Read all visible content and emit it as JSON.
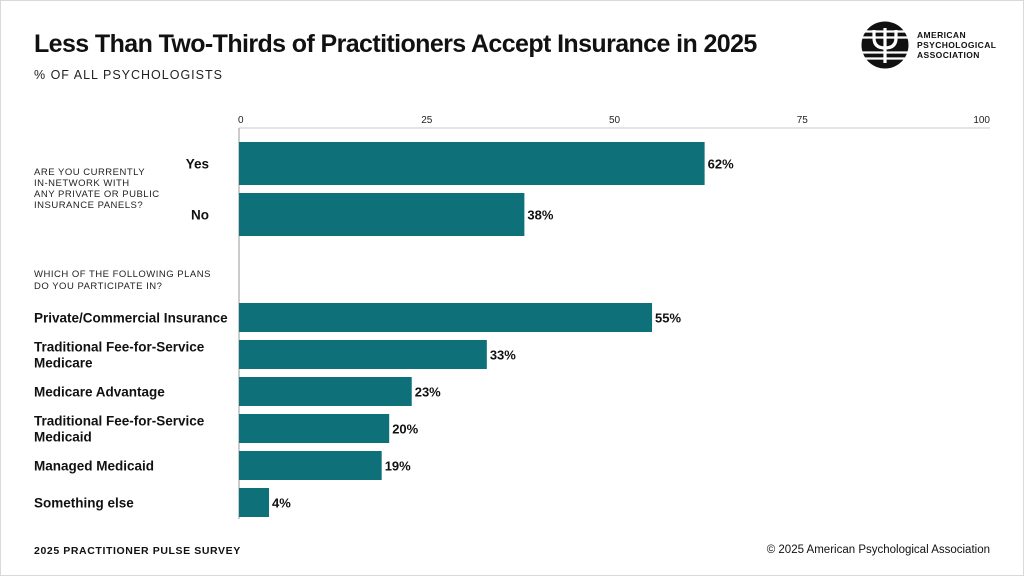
{
  "title": "Less Than Two-Thirds of Practitioners Accept Insurance in 2025",
  "subtitle": "% OF ALL PSYCHOLOGISTS",
  "logo": {
    "lines": [
      "AMERICAN",
      "PSYCHOLOGICAL",
      "ASSOCIATION"
    ],
    "icon": "psi-logo-icon"
  },
  "footer": {
    "left": "2025 PRACTITIONER PULSE SURVEY",
    "right": "© 2025 American Psychological Association"
  },
  "colors": {
    "bar": "#0e717a",
    "axis": "#9a9a9a",
    "text": "#111111"
  },
  "chart_data": {
    "type": "bar",
    "orientation": "horizontal",
    "xlim": [
      0,
      100
    ],
    "xticks": [
      "0",
      "25",
      "50",
      "75",
      "100"
    ],
    "grid": false,
    "groups": [
      {
        "question_lines": [
          "ARE YOU CURRENTLY",
          "IN-NETWORK WITH",
          "ANY PRIVATE OR PUBLIC",
          "INSURANCE PANELS?"
        ],
        "items": [
          {
            "label": [
              "Yes"
            ],
            "value": 62,
            "value_label": "62%"
          },
          {
            "label": [
              "No"
            ],
            "value": 38,
            "value_label": "38%"
          }
        ]
      },
      {
        "question_lines": [
          "WHICH OF THE FOLLOWING PLANS",
          "DO YOU PARTICIPATE IN?"
        ],
        "items": [
          {
            "label": [
              "Private/Commercial Insurance"
            ],
            "value": 55,
            "value_label": "55%"
          },
          {
            "label": [
              "Traditional Fee-for-Service",
              "Medicare"
            ],
            "value": 33,
            "value_label": "33%"
          },
          {
            "label": [
              "Medicare Advantage"
            ],
            "value": 23,
            "value_label": "23%"
          },
          {
            "label": [
              "Traditional Fee-for-Service",
              "Medicaid"
            ],
            "value": 20,
            "value_label": "20%"
          },
          {
            "label": [
              "Managed Medicaid"
            ],
            "value": 19,
            "value_label": "19%"
          },
          {
            "label": [
              "Something else"
            ],
            "value": 4,
            "value_label": "4%"
          }
        ]
      }
    ]
  }
}
